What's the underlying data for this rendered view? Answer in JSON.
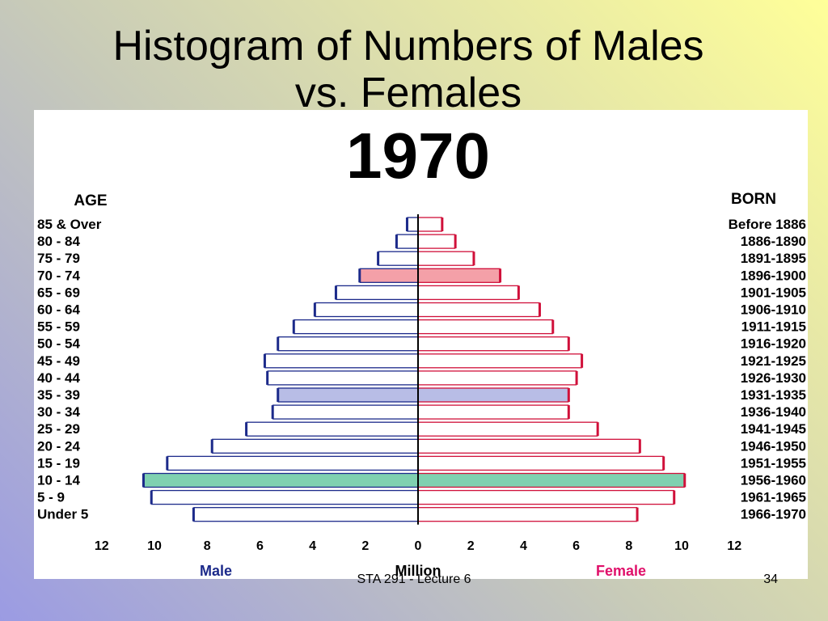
{
  "slide": {
    "title_line1": "Histogram of Numbers of Males",
    "title_line2": "vs. Females",
    "footer": "STA 291 - Lecture 6",
    "page_number": "34"
  },
  "chart_data": {
    "type": "bar",
    "orientation": "horizontal-population-pyramid",
    "title": "1970",
    "left_header": "AGE",
    "right_header": "BORN",
    "xlabel": "Million",
    "left_series_label": "Male",
    "right_series_label": "Female",
    "x_ticks_left": [
      "12",
      "10",
      "8",
      "6",
      "4",
      "2",
      "0"
    ],
    "x_ticks_right": [
      "2",
      "4",
      "6",
      "8",
      "10",
      "12"
    ],
    "xlim": [
      0,
      12
    ],
    "categories": [
      "85 & Over",
      "80 - 84",
      "75 - 79",
      "70 - 74",
      "65 - 69",
      "60 - 64",
      "55 - 59",
      "50 - 54",
      "45 - 49",
      "40 - 44",
      "35 - 39",
      "30 - 34",
      "25 - 29",
      "20 - 24",
      "15 - 19",
      "10 - 14",
      "5 - 9",
      "Under 5"
    ],
    "born": [
      "Before 1886",
      "1886-1890",
      "1891-1895",
      "1896-1900",
      "1901-1905",
      "1906-1910",
      "1911-1915",
      "1916-1920",
      "1921-1925",
      "1926-1930",
      "1931-1935",
      "1936-1940",
      "1941-1945",
      "1946-1950",
      "1951-1955",
      "1956-1960",
      "1961-1965",
      "1966-1970"
    ],
    "series": [
      {
        "name": "Male",
        "values": [
          0.4,
          0.8,
          1.5,
          2.2,
          3.1,
          3.9,
          4.7,
          5.3,
          5.8,
          5.7,
          5.3,
          5.5,
          6.5,
          7.8,
          9.5,
          10.4,
          10.1,
          8.5
        ]
      },
      {
        "name": "Female",
        "values": [
          0.9,
          1.4,
          2.1,
          3.1,
          3.8,
          4.6,
          5.1,
          5.7,
          6.2,
          6.0,
          5.7,
          5.7,
          6.8,
          8.4,
          9.3,
          10.1,
          9.7,
          8.3
        ]
      }
    ],
    "highlighted_groups": {
      "70 - 74": "#f4a0a8",
      "35 - 39": "#b8bde6",
      "10 - 14": "#7fd1b0"
    },
    "colors": {
      "male_line": "#1c2a8a",
      "female_line": "#d0103a",
      "female_label": "#e0106a",
      "axis": "#000000"
    }
  }
}
